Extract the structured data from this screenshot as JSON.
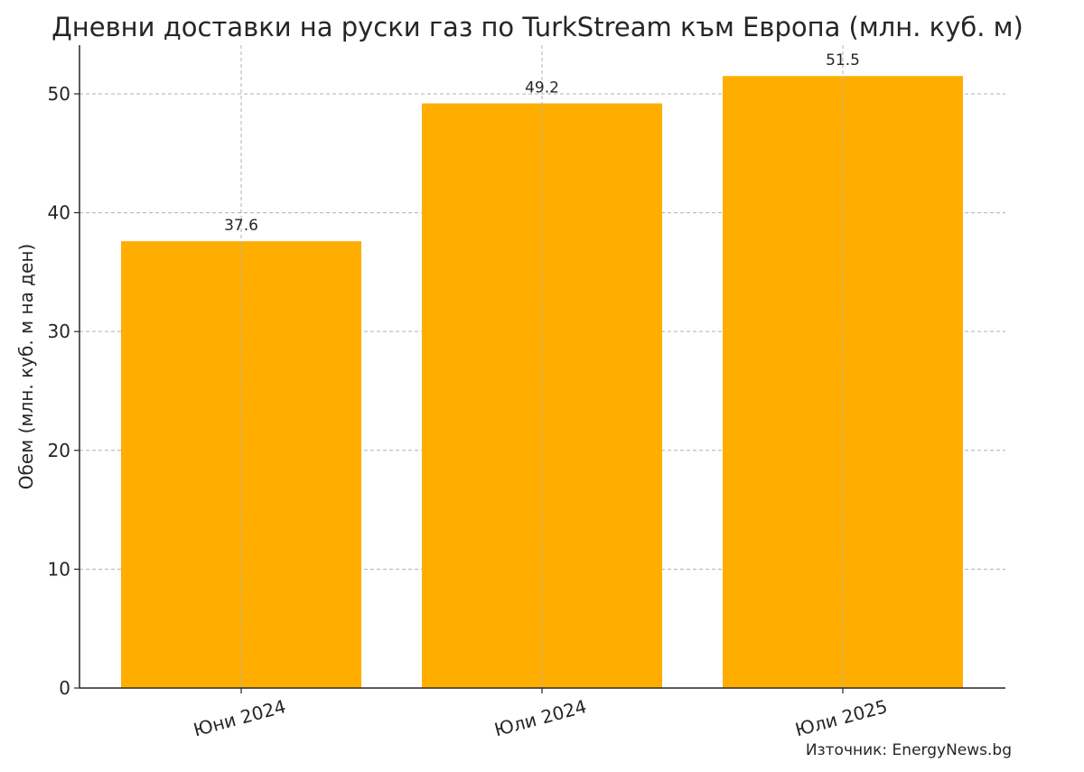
{
  "chart_data": {
    "type": "bar",
    "title": "Дневни доставки на руски газ по TurkStream към Европа (млн. куб. м)",
    "xlabel": "",
    "ylabel": "Обем (млн. куб. м на ден)",
    "categories": [
      "Юни 2024",
      "Юли 2024",
      "Юли 2025"
    ],
    "values": [
      37.6,
      49.2,
      51.5
    ],
    "value_labels": [
      "37.6",
      "49.2",
      "51.5"
    ],
    "ylim": [
      0,
      54.1
    ],
    "yticks": [
      0,
      10,
      20,
      30,
      40,
      50
    ],
    "grid": true,
    "bar_color": "#FFAE00",
    "source": "Източник: EnergyNews.bg"
  }
}
